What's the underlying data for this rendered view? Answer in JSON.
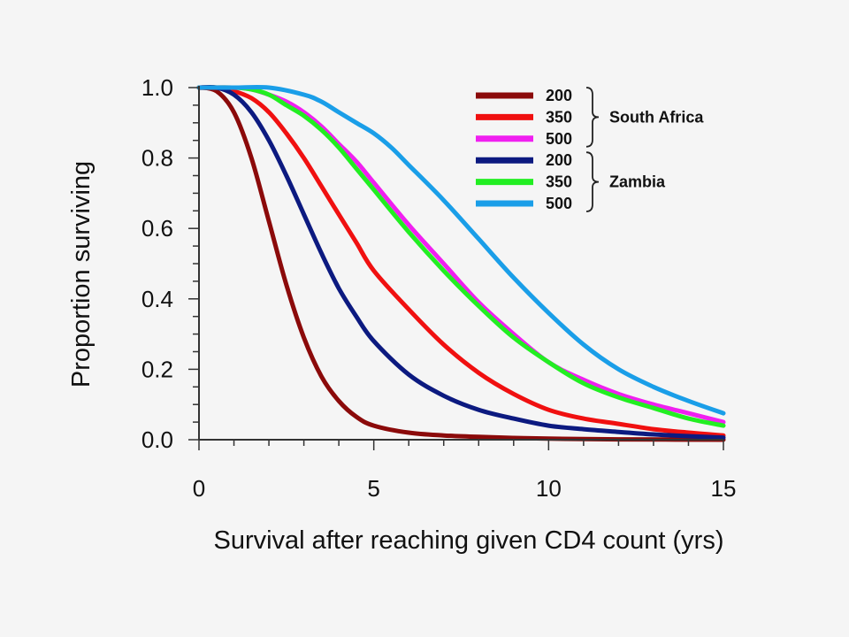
{
  "chart_data": {
    "type": "line",
    "xlabel": "Survival after reaching given CD4 count (yrs)",
    "ylabel": "Proportion surviving",
    "xlim": [
      0,
      15
    ],
    "ylim": [
      0,
      1.0
    ],
    "x_ticks": [
      "0",
      "5",
      "10",
      "15"
    ],
    "y_ticks": [
      "0.0",
      "0.2",
      "0.4",
      "0.6",
      "0.8",
      "1.0"
    ],
    "grid": false,
    "legend_position": "top-right",
    "legend_groups": [
      {
        "label": "South Africa",
        "entries": [
          0,
          1,
          2
        ]
      },
      {
        "label": "Zambia",
        "entries": [
          3,
          4,
          5
        ]
      }
    ],
    "series": [
      {
        "name": "200",
        "group": "South Africa",
        "color": "#8b0a0a",
        "x": [
          0,
          0.5,
          1,
          1.5,
          2,
          2.5,
          3,
          3.5,
          4,
          4.5,
          5,
          6,
          7,
          8,
          9,
          10,
          12,
          15
        ],
        "y": [
          1.0,
          0.99,
          0.93,
          0.8,
          0.62,
          0.44,
          0.29,
          0.18,
          0.11,
          0.065,
          0.04,
          0.02,
          0.012,
          0.008,
          0.005,
          0.003,
          0.001,
          0.0
        ]
      },
      {
        "name": "350",
        "group": "South Africa",
        "color": "#f01010",
        "x": [
          0,
          0.5,
          1,
          1.5,
          2,
          2.5,
          3,
          3.5,
          4,
          4.5,
          5,
          6,
          7,
          8,
          9,
          10,
          11,
          12,
          13,
          14,
          15
        ],
        "y": [
          1.0,
          1.0,
          0.99,
          0.97,
          0.93,
          0.87,
          0.8,
          0.72,
          0.64,
          0.56,
          0.48,
          0.37,
          0.27,
          0.19,
          0.13,
          0.085,
          0.06,
          0.045,
          0.03,
          0.02,
          0.012
        ]
      },
      {
        "name": "500",
        "group": "South Africa",
        "color": "#f020f0",
        "x": [
          0,
          1,
          1.5,
          2,
          2.5,
          3,
          3.5,
          4,
          4.5,
          5,
          6,
          7,
          8,
          9,
          10,
          11,
          12,
          13,
          14,
          15
        ],
        "y": [
          1.0,
          1.0,
          0.995,
          0.98,
          0.96,
          0.93,
          0.89,
          0.84,
          0.79,
          0.73,
          0.61,
          0.5,
          0.39,
          0.3,
          0.22,
          0.17,
          0.13,
          0.1,
          0.075,
          0.05
        ]
      },
      {
        "name": "200",
        "group": "Zambia",
        "color": "#0c1a80",
        "x": [
          0,
          0.5,
          1,
          1.5,
          2,
          2.5,
          3,
          3.5,
          4,
          4.5,
          5,
          6,
          7,
          8,
          9,
          10,
          11,
          12,
          13,
          14,
          15
        ],
        "y": [
          1.0,
          1.0,
          0.98,
          0.93,
          0.85,
          0.75,
          0.64,
          0.53,
          0.43,
          0.35,
          0.28,
          0.185,
          0.125,
          0.085,
          0.06,
          0.04,
          0.03,
          0.022,
          0.015,
          0.01,
          0.006
        ]
      },
      {
        "name": "350",
        "group": "Zambia",
        "color": "#22ee22",
        "x": [
          0,
          1,
          1.5,
          2,
          2.5,
          3,
          3.5,
          4,
          4.5,
          5,
          6,
          7,
          8,
          9,
          10,
          11,
          12,
          13,
          14,
          15
        ],
        "y": [
          1.0,
          1.0,
          0.995,
          0.98,
          0.95,
          0.92,
          0.88,
          0.83,
          0.77,
          0.71,
          0.59,
          0.48,
          0.38,
          0.29,
          0.22,
          0.16,
          0.12,
          0.09,
          0.06,
          0.04
        ]
      },
      {
        "name": "500",
        "group": "Zambia",
        "color": "#1a9ee8",
        "x": [
          0,
          1,
          2,
          3,
          3.5,
          4,
          4.5,
          5,
          5.5,
          6,
          7,
          8,
          9,
          10,
          11,
          12,
          13,
          14,
          15
        ],
        "y": [
          1.0,
          1.0,
          1.0,
          0.98,
          0.96,
          0.93,
          0.9,
          0.87,
          0.83,
          0.78,
          0.68,
          0.57,
          0.46,
          0.36,
          0.27,
          0.2,
          0.15,
          0.11,
          0.075
        ]
      }
    ]
  }
}
